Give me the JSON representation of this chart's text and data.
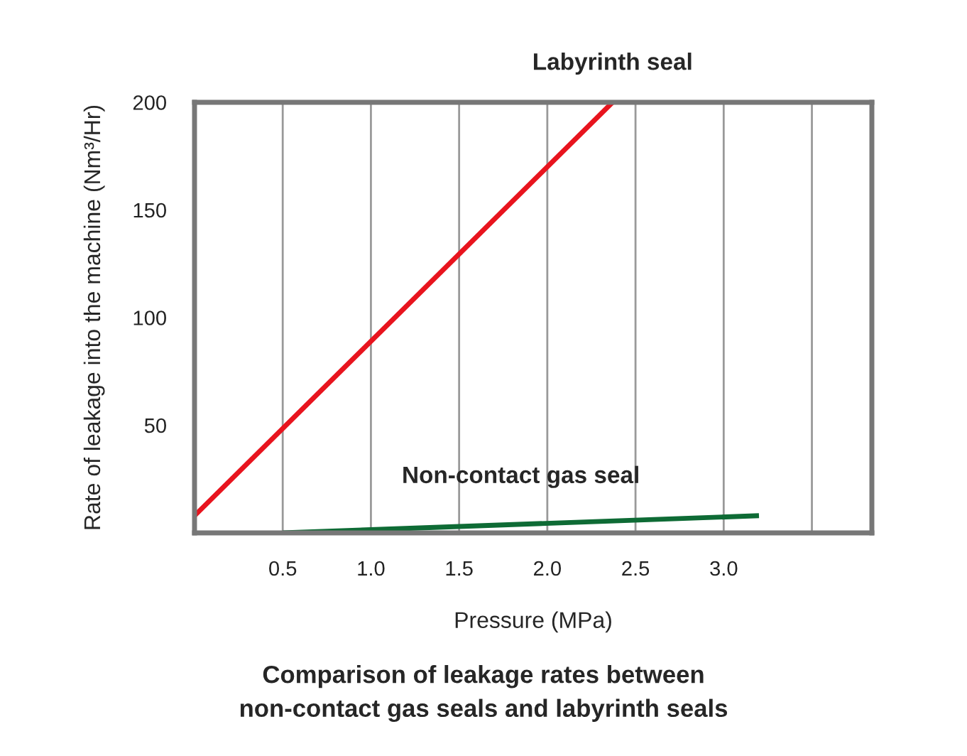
{
  "chart_data": {
    "type": "line",
    "title": "Comparison of leakage rates between\nnon-contact gas seals and labyrinth seals",
    "xlabel": "Pressure (MPa)",
    "ylabel": "Rate of leakage into the machine (Nm³/Hr)",
    "series": [
      {
        "name": "Labyrinth seal",
        "color": "#e8141e",
        "x": [
          0,
          2.37
        ],
        "values": [
          8,
          200
        ]
      },
      {
        "name": "Non-contact gas seal",
        "color": "#0e6b35",
        "x": [
          0.5,
          3.2
        ],
        "values": [
          0,
          8
        ]
      }
    ],
    "xlim": [
      0,
      3.84
    ],
    "xticks": [
      0.5,
      {
        "value": 1,
        "label": "1.0"
      },
      1.5,
      {
        "value": 2,
        "label": "2.0"
      },
      2.5,
      {
        "value": 3,
        "label": "3.0"
      },
      {
        "value": 3.5,
        "label": null
      }
    ],
    "ylim": [
      0,
      200
    ],
    "yticks": [
      50,
      100,
      150,
      200
    ],
    "grid": "x",
    "legend": false,
    "marker": "none",
    "line_style": "solid"
  }
}
